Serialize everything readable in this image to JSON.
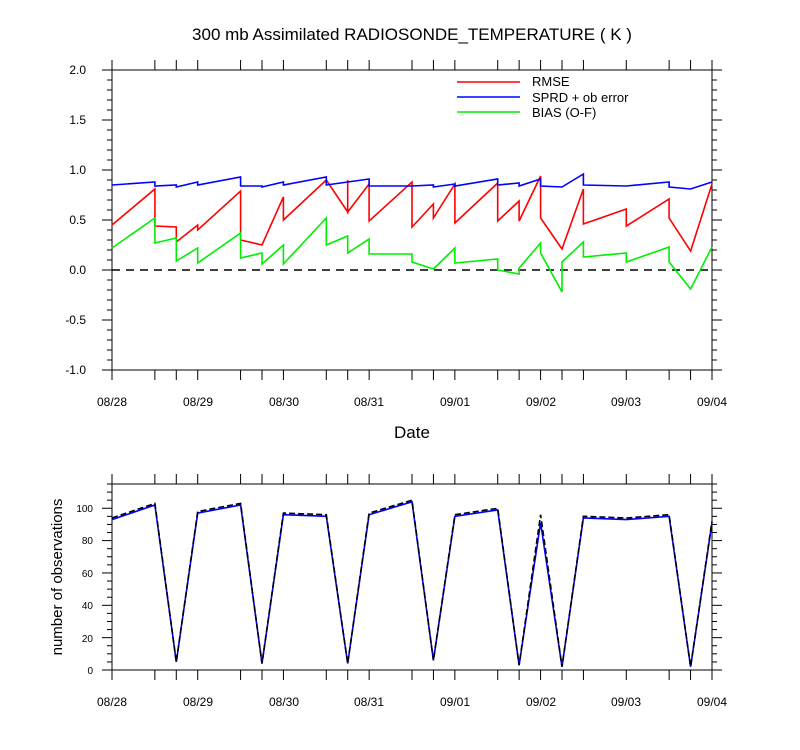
{
  "chart_data": [
    {
      "type": "line",
      "title": "300 mb Assimilated RADIOSONDE_TEMPERATURE ( K )",
      "xlabel": "Date",
      "ylabel": "",
      "ylim": [
        -1.0,
        2.0
      ],
      "xlim_days": [
        0,
        7
      ],
      "x_tick_labels": [
        "08/28",
        "08/29",
        "08/30",
        "08/31",
        "09/01",
        "09/02",
        "09/03",
        "09/04"
      ],
      "y_tick_labels": [
        "-1.0",
        "-0.5",
        "0.0",
        "0.5",
        "1.0",
        "1.5",
        "2.0"
      ],
      "y_ticks": [
        -1.0,
        -0.5,
        0.0,
        0.5,
        1.0,
        1.5,
        2.0
      ],
      "legend_position": "top-right",
      "zero_line": "dashed",
      "series": [
        {
          "name": "RMSE",
          "color": "#ff0000",
          "points": [
            [
              0.0,
              0.45
            ],
            [
              0.5,
              0.81
            ],
            [
              0.5,
              0.44
            ],
            [
              0.75,
              0.43
            ],
            [
              0.75,
              0.28
            ],
            [
              1.0,
              0.45
            ],
            [
              1.0,
              0.4
            ],
            [
              1.5,
              0.79
            ],
            [
              1.5,
              0.3
            ],
            [
              1.75,
              0.25
            ],
            [
              2.0,
              0.73
            ],
            [
              2.0,
              0.5
            ],
            [
              2.5,
              0.9
            ],
            [
              2.75,
              0.58
            ],
            [
              2.75,
              0.9
            ],
            [
              2.75,
              0.58
            ],
            [
              3.0,
              0.86
            ],
            [
              3.0,
              0.49
            ],
            [
              3.5,
              0.88
            ],
            [
              3.5,
              0.43
            ],
            [
              3.75,
              0.66
            ],
            [
              3.75,
              0.52
            ],
            [
              4.0,
              0.86
            ],
            [
              4.0,
              0.47
            ],
            [
              4.5,
              0.87
            ],
            [
              4.5,
              0.49
            ],
            [
              4.75,
              0.69
            ],
            [
              4.75,
              0.49
            ],
            [
              5.0,
              0.94
            ],
            [
              5.0,
              0.52
            ],
            [
              5.25,
              0.21
            ],
            [
              5.5,
              0.81
            ],
            [
              5.5,
              0.46
            ],
            [
              6.0,
              0.61
            ],
            [
              6.0,
              0.44
            ],
            [
              6.5,
              0.71
            ],
            [
              6.5,
              0.52
            ],
            [
              6.75,
              0.19
            ],
            [
              7.0,
              0.86
            ]
          ]
        },
        {
          "name": "SPRD + ob error",
          "color": "#0000ff",
          "points": [
            [
              0.0,
              0.85
            ],
            [
              0.5,
              0.88
            ],
            [
              0.5,
              0.84
            ],
            [
              0.75,
              0.85
            ],
            [
              0.75,
              0.83
            ],
            [
              1.0,
              0.88
            ],
            [
              1.0,
              0.85
            ],
            [
              1.5,
              0.93
            ],
            [
              1.5,
              0.84
            ],
            [
              1.75,
              0.84
            ],
            [
              1.75,
              0.83
            ],
            [
              2.0,
              0.88
            ],
            [
              2.0,
              0.85
            ],
            [
              2.5,
              0.93
            ],
            [
              2.5,
              0.85
            ],
            [
              3.0,
              0.91
            ],
            [
              3.0,
              0.84
            ],
            [
              3.5,
              0.84
            ],
            [
              3.75,
              0.85
            ],
            [
              3.75,
              0.83
            ],
            [
              4.0,
              0.86
            ],
            [
              4.0,
              0.84
            ],
            [
              4.5,
              0.91
            ],
            [
              4.5,
              0.85
            ],
            [
              4.75,
              0.87
            ],
            [
              4.75,
              0.84
            ],
            [
              5.0,
              0.91
            ],
            [
              5.0,
              0.84
            ],
            [
              5.25,
              0.83
            ],
            [
              5.5,
              0.96
            ],
            [
              5.5,
              0.85
            ],
            [
              6.0,
              0.84
            ],
            [
              6.5,
              0.88
            ],
            [
              6.5,
              0.83
            ],
            [
              6.75,
              0.81
            ],
            [
              7.0,
              0.88
            ]
          ]
        },
        {
          "name": "BIAS (O-F)",
          "color": "#00ee00",
          "points": [
            [
              0.0,
              0.22
            ],
            [
              0.5,
              0.52
            ],
            [
              0.5,
              0.27
            ],
            [
              0.75,
              0.32
            ],
            [
              0.75,
              0.09
            ],
            [
              1.0,
              0.22
            ],
            [
              1.0,
              0.07
            ],
            [
              1.5,
              0.37
            ],
            [
              1.5,
              0.12
            ],
            [
              1.75,
              0.17
            ],
            [
              1.75,
              0.06
            ],
            [
              2.0,
              0.25
            ],
            [
              2.0,
              0.06
            ],
            [
              2.5,
              0.52
            ],
            [
              2.5,
              0.25
            ],
            [
              2.75,
              0.34
            ],
            [
              2.75,
              0.17
            ],
            [
              3.0,
              0.31
            ],
            [
              3.0,
              0.16
            ],
            [
              3.5,
              0.16
            ],
            [
              3.5,
              0.08
            ],
            [
              3.75,
              0.01
            ],
            [
              4.0,
              0.22
            ],
            [
              4.0,
              0.07
            ],
            [
              4.5,
              0.11
            ],
            [
              4.5,
              0.0
            ],
            [
              4.75,
              -0.04
            ],
            [
              4.75,
              0.02
            ],
            [
              5.0,
              0.27
            ],
            [
              5.0,
              0.17
            ],
            [
              5.25,
              -0.22
            ],
            [
              5.25,
              0.08
            ],
            [
              5.5,
              0.28
            ],
            [
              5.5,
              0.13
            ],
            [
              6.0,
              0.17
            ],
            [
              6.0,
              0.08
            ],
            [
              6.5,
              0.23
            ],
            [
              6.5,
              0.08
            ],
            [
              6.75,
              -0.19
            ],
            [
              7.0,
              0.23
            ]
          ]
        }
      ]
    },
    {
      "type": "line",
      "title": "",
      "xlabel": "",
      "ylabel": "number of observations",
      "ylim": [
        0,
        115
      ],
      "xlim_days": [
        0,
        7
      ],
      "x_tick_labels": [
        "08/28",
        "08/29",
        "08/30",
        "08/31",
        "09/01",
        "09/02",
        "09/03",
        "09/04"
      ],
      "y_tick_labels": [
        "0",
        "20",
        "40",
        "60",
        "80",
        "100"
      ],
      "y_ticks": [
        0,
        20,
        40,
        60,
        80,
        100
      ],
      "series": [
        {
          "name": "observations (solid)",
          "color": "#0000ff",
          "style": "solid",
          "points": [
            [
              0.0,
              93
            ],
            [
              0.5,
              102
            ],
            [
              0.75,
              5
            ],
            [
              1.0,
              97
            ],
            [
              1.5,
              102
            ],
            [
              1.75,
              4
            ],
            [
              2.0,
              96
            ],
            [
              2.5,
              95
            ],
            [
              2.75,
              4
            ],
            [
              3.0,
              96
            ],
            [
              3.5,
              104
            ],
            [
              3.75,
              6
            ],
            [
              4.0,
              95
            ],
            [
              4.5,
              99
            ],
            [
              4.75,
              3
            ],
            [
              5.0,
              91
            ],
            [
              5.25,
              2
            ],
            [
              5.5,
              94
            ],
            [
              6.0,
              93
            ],
            [
              6.5,
              95
            ],
            [
              6.75,
              2
            ],
            [
              7.0,
              91
            ]
          ]
        },
        {
          "name": "observations (dashed)",
          "color": "#000000",
          "style": "dashed",
          "points": [
            [
              0.0,
              94
            ],
            [
              0.5,
              103
            ],
            [
              0.75,
              5
            ],
            [
              1.0,
              98
            ],
            [
              1.5,
              103
            ],
            [
              1.75,
              4
            ],
            [
              2.0,
              97
            ],
            [
              2.5,
              96
            ],
            [
              2.75,
              4
            ],
            [
              3.0,
              97
            ],
            [
              3.5,
              105
            ],
            [
              3.75,
              6
            ],
            [
              4.0,
              96
            ],
            [
              4.5,
              100
            ],
            [
              4.75,
              3
            ],
            [
              5.0,
              96
            ],
            [
              5.25,
              2
            ],
            [
              5.5,
              95
            ],
            [
              6.0,
              94
            ],
            [
              6.5,
              96
            ],
            [
              6.75,
              2
            ],
            [
              7.0,
              92
            ]
          ]
        }
      ]
    }
  ]
}
